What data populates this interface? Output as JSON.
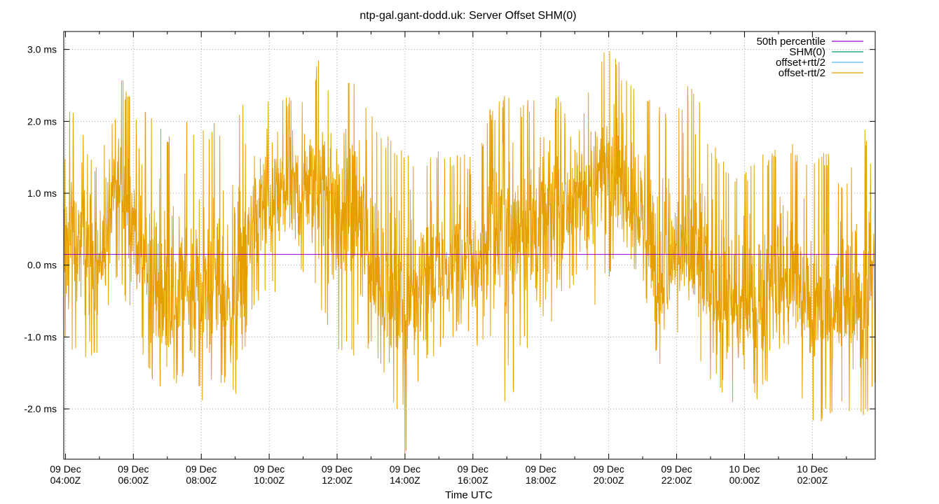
{
  "chart_data": {
    "type": "line",
    "title": "ntp-gal.gant-dodd.uk: Server Offset SHM(0)",
    "xlabel": "Time UTC",
    "ylabel": "",
    "grid": true,
    "legend_placement": "top-right",
    "ylim_ms": [
      -2.7,
      3.25
    ],
    "xlim_hours_from_09Dec_04:00Z": [
      -0.05,
      23.85
    ],
    "y_ticks": [
      {
        "value": 3.0,
        "label": "3.0 ms"
      },
      {
        "value": 2.0,
        "label": "2.0 ms"
      },
      {
        "value": 1.0,
        "label": "1.0 ms"
      },
      {
        "value": 0.0,
        "label": "0.0 ms"
      },
      {
        "value": -1.0,
        "label": "-1.0 ms"
      },
      {
        "value": -2.0,
        "label": "-2.0 ms"
      }
    ],
    "x_ticks": [
      {
        "hour": 0,
        "date": "09 Dec",
        "time": "04:00Z"
      },
      {
        "hour": 2,
        "date": "09 Dec",
        "time": "06:00Z"
      },
      {
        "hour": 4,
        "date": "09 Dec",
        "time": "08:00Z"
      },
      {
        "hour": 6,
        "date": "09 Dec",
        "time": "10:00Z"
      },
      {
        "hour": 8,
        "date": "09 Dec",
        "time": "12:00Z"
      },
      {
        "hour": 10,
        "date": "09 Dec",
        "time": "14:00Z"
      },
      {
        "hour": 12,
        "date": "09 Dec",
        "time": "16:00Z"
      },
      {
        "hour": 14,
        "date": "09 Dec",
        "time": "18:00Z"
      },
      {
        "hour": 16,
        "date": "09 Dec",
        "time": "20:00Z"
      },
      {
        "hour": 18,
        "date": "09 Dec",
        "time": "22:00Z"
      },
      {
        "hour": 20,
        "date": "10 Dec",
        "time": "00:00Z"
      },
      {
        "hour": 22,
        "date": "10 Dec",
        "time": "02:00Z"
      }
    ],
    "series": [
      {
        "name": "50th percentile",
        "color": "#9400d3",
        "constant_ms": 0.15
      },
      {
        "name": "SHM(0)",
        "color": "#009e73",
        "values_ms": []
      },
      {
        "name": "offset+rtt/2",
        "color": "#56b4e9",
        "values_ms": []
      },
      {
        "name": "offset-rtt/2",
        "color": "#e69f00",
        "envelope": {
          "hours": [
            -0.05,
            0.5,
            1.0,
            1.5,
            2.0,
            2.5,
            3.0,
            3.5,
            4.0,
            4.5,
            5.0,
            5.5,
            6.0,
            6.5,
            7.0,
            7.5,
            8.0,
            8.5,
            9.0,
            9.5,
            10.0,
            10.5,
            11.0,
            11.5,
            12.0,
            12.5,
            13.0,
            13.5,
            14.0,
            14.5,
            15.0,
            15.5,
            16.0,
            16.5,
            17.0,
            17.5,
            18.0,
            18.5,
            19.0,
            19.5,
            20.0,
            20.5,
            21.0,
            21.5,
            22.0,
            22.5,
            23.0,
            23.5,
            23.85
          ],
          "max_ms": [
            2.4,
            2.0,
            1.3,
            2.9,
            2.2,
            2.3,
            1.9,
            2.0,
            2.0,
            2.0,
            2.2,
            2.3,
            2.5,
            2.4,
            2.4,
            2.9,
            2.4,
            2.7,
            2.2,
            1.8,
            1.6,
            1.5,
            1.6,
            1.6,
            1.5,
            2.2,
            2.4,
            2.3,
            2.4,
            2.4,
            1.9,
            2.7,
            3.1,
            2.7,
            2.6,
            2.2,
            2.3,
            2.6,
            1.7,
            1.5,
            1.3,
            1.6,
            1.7,
            1.7,
            1.5,
            1.6,
            1.2,
            2.0,
            1.3
          ],
          "min_ms": [
            -1.1,
            -1.4,
            -1.2,
            -0.3,
            -0.8,
            -1.6,
            -1.8,
            -1.6,
            -1.9,
            -1.6,
            -2.0,
            -0.6,
            -0.4,
            -0.6,
            -0.2,
            -0.6,
            -1.3,
            -1.3,
            -1.3,
            -1.6,
            -2.7,
            -1.5,
            -1.2,
            -1.0,
            -1.2,
            -1.2,
            -2.2,
            -1.1,
            -1.6,
            -0.4,
            -0.3,
            -0.9,
            -0.2,
            0.2,
            -0.4,
            -1.5,
            -1.0,
            -1.3,
            -1.6,
            -1.9,
            -2.2,
            -1.8,
            -1.7,
            -1.8,
            -2.3,
            -2.1,
            -2.0,
            -2.3,
            -1.8
          ],
          "mid_ms": [
            0.3,
            0.3,
            0.0,
            1.1,
            0.6,
            -0.3,
            -0.6,
            -0.3,
            -0.5,
            -0.3,
            -0.6,
            0.6,
            0.9,
            1.0,
            1.0,
            1.1,
            0.7,
            0.9,
            0.0,
            -0.5,
            -0.7,
            0.0,
            -0.2,
            0.0,
            -0.1,
            0.4,
            0.6,
            0.6,
            0.4,
            0.8,
            0.9,
            1.0,
            1.6,
            1.0,
            0.7,
            -0.3,
            0.1,
            0.0,
            -0.3,
            -0.7,
            -0.7,
            -0.5,
            -0.2,
            -0.3,
            -0.7,
            -0.8,
            -0.4,
            -0.5,
            -0.1
          ]
        }
      }
    ]
  }
}
